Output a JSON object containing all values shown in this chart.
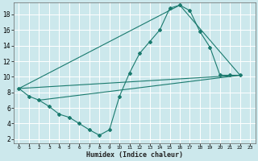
{
  "xlabel": "Humidex (Indice chaleur)",
  "background_color": "#cce8ec",
  "grid_color": "#ffffff",
  "line_color": "#1a7a6e",
  "xlim": [
    -0.5,
    23.5
  ],
  "ylim": [
    1.5,
    19.5
  ],
  "yticks": [
    2,
    4,
    6,
    8,
    10,
    12,
    14,
    16,
    18
  ],
  "xticks": [
    0,
    1,
    2,
    3,
    4,
    5,
    6,
    7,
    8,
    9,
    10,
    11,
    12,
    13,
    14,
    15,
    16,
    17,
    18,
    19,
    20,
    21,
    22,
    23
  ],
  "line1_x": [
    0,
    1,
    2,
    3,
    4,
    5,
    6,
    7,
    8,
    9,
    10,
    11,
    12,
    13,
    14,
    15,
    16,
    17,
    18,
    19,
    20,
    21,
    22
  ],
  "line1_y": [
    8.5,
    7.5,
    7.0,
    6.2,
    5.2,
    4.8,
    4.0,
    3.2,
    2.5,
    3.2,
    7.5,
    10.5,
    13.0,
    14.5,
    16.0,
    18.8,
    19.2,
    18.5,
    15.8,
    13.8,
    10.2,
    10.2,
    10.2
  ],
  "line2_x": [
    0,
    22
  ],
  "line2_y": [
    8.5,
    10.2
  ],
  "line3_x": [
    0,
    16,
    22
  ],
  "line3_y": [
    8.5,
    19.2,
    10.2
  ],
  "line4_x": [
    2,
    22
  ],
  "line4_y": [
    7.0,
    10.2
  ]
}
